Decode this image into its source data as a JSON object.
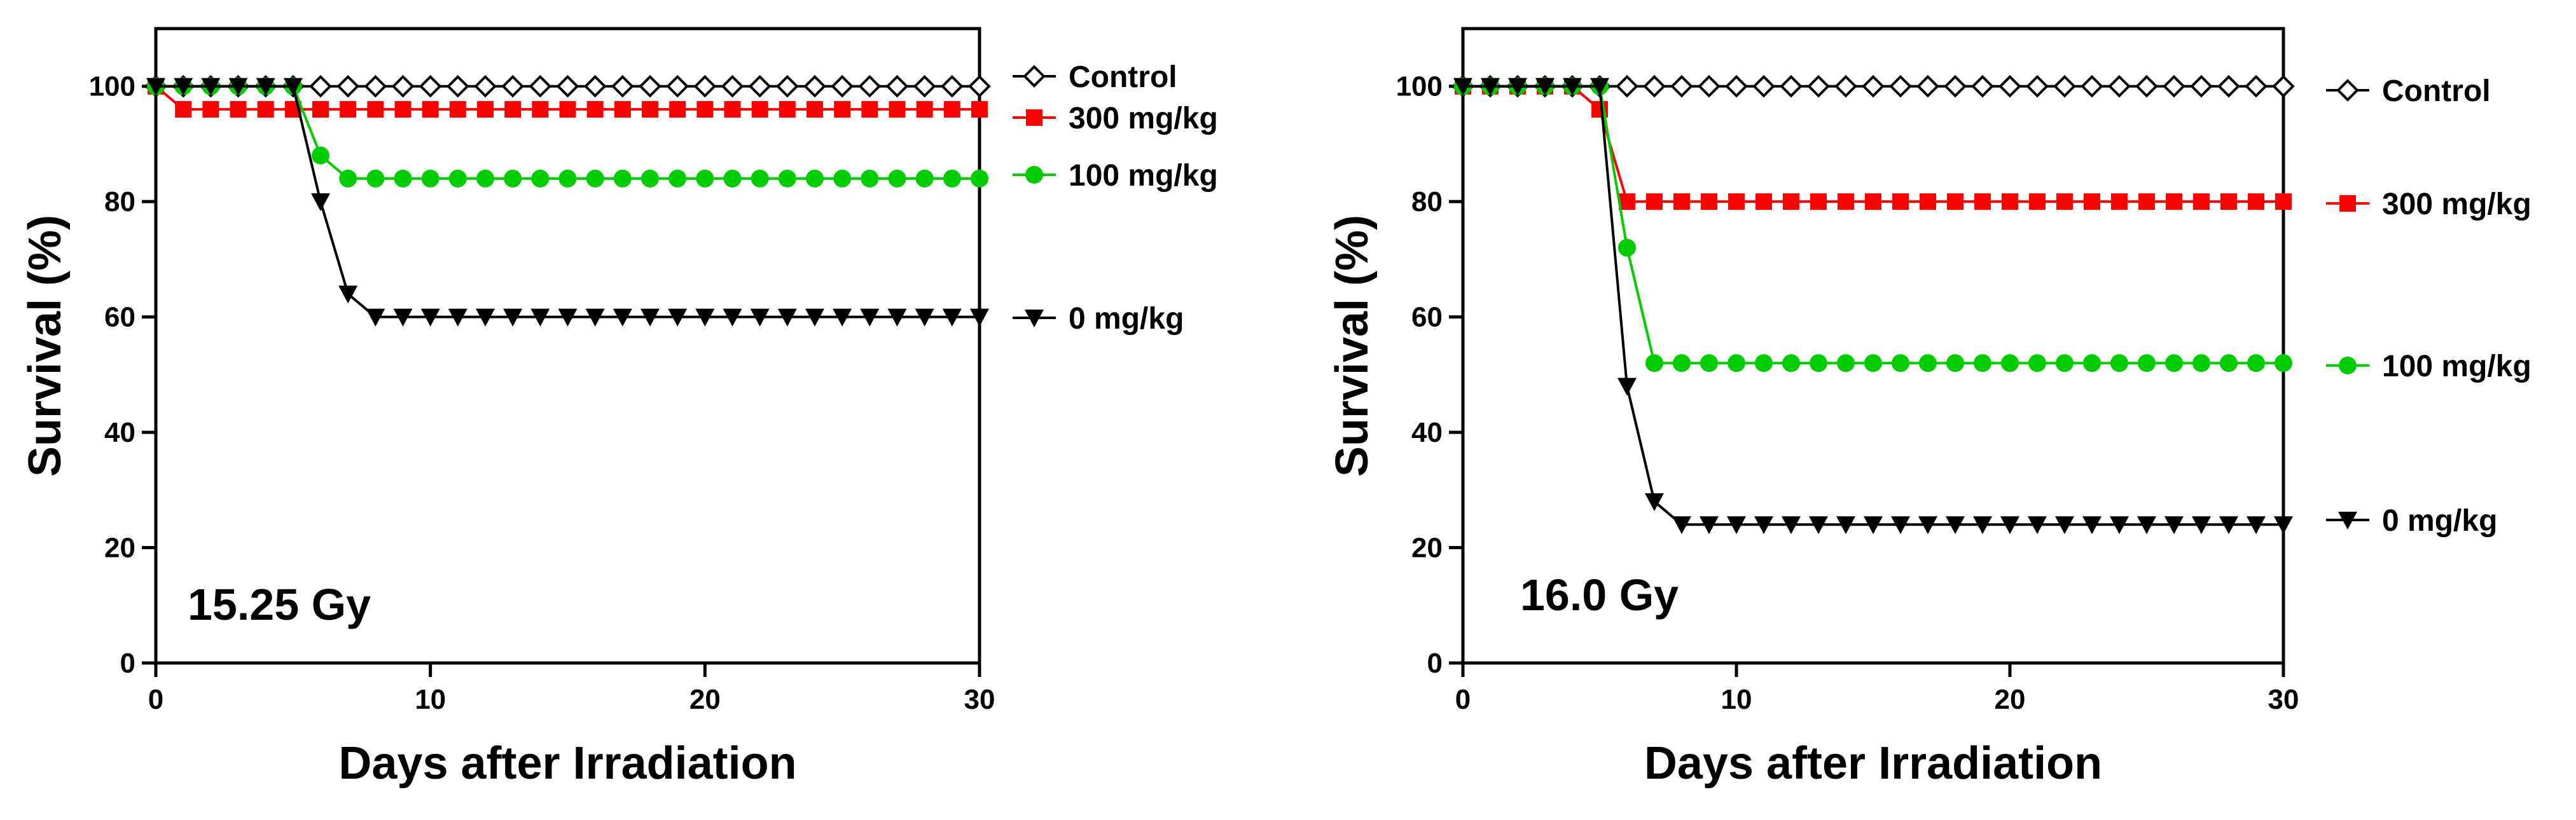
{
  "chart_data": [
    {
      "type": "line",
      "annotation": "15.25 Gy",
      "title": "",
      "xlabel": "Days after Irradiation",
      "ylabel": "Survival (%)",
      "xlim": [
        0,
        30
      ],
      "ylim": [
        0,
        110
      ],
      "xticks": [
        0,
        10,
        20,
        30
      ],
      "yticks": [
        0,
        20,
        40,
        60,
        80,
        100
      ],
      "grid": false,
      "legend": "right",
      "x": [
        0,
        1,
        2,
        3,
        4,
        5,
        6,
        7,
        8,
        9,
        10,
        11,
        12,
        13,
        14,
        15,
        16,
        17,
        18,
        19,
        20,
        21,
        22,
        23,
        24,
        25,
        26,
        27,
        28,
        29,
        30
      ],
      "series": [
        {
          "name": "Control",
          "color": "#000000",
          "marker": "open-diamond",
          "values": [
            100,
            100,
            100,
            100,
            100,
            100,
            100,
            100,
            100,
            100,
            100,
            100,
            100,
            100,
            100,
            100,
            100,
            100,
            100,
            100,
            100,
            100,
            100,
            100,
            100,
            100,
            100,
            100,
            100,
            100,
            100
          ]
        },
        {
          "name": "300 mg/kg",
          "color": "#ff0000",
          "marker": "square",
          "values": [
            100,
            96,
            96,
            96,
            96,
            96,
            96,
            96,
            96,
            96,
            96,
            96,
            96,
            96,
            96,
            96,
            96,
            96,
            96,
            96,
            96,
            96,
            96,
            96,
            96,
            96,
            96,
            96,
            96,
            96,
            96
          ]
        },
        {
          "name": "100 mg/kg",
          "color": "#00cc00",
          "marker": "circle",
          "values": [
            100,
            100,
            100,
            100,
            100,
            100,
            88,
            84,
            84,
            84,
            84,
            84,
            84,
            84,
            84,
            84,
            84,
            84,
            84,
            84,
            84,
            84,
            84,
            84,
            84,
            84,
            84,
            84,
            84,
            84,
            84
          ]
        },
        {
          "name": "0 mg/kg",
          "color": "#000000",
          "marker": "down-triangle",
          "values": [
            100,
            100,
            100,
            100,
            100,
            100,
            80,
            64,
            60,
            60,
            60,
            60,
            60,
            60,
            60,
            60,
            60,
            60,
            60,
            60,
            60,
            60,
            60,
            60,
            60,
            60,
            60,
            60,
            60,
            60,
            60
          ]
        }
      ]
    },
    {
      "type": "line",
      "annotation": "16.0 Gy",
      "title": "",
      "xlabel": "Days after Irradiation",
      "ylabel": "Survival (%)",
      "xlim": [
        0,
        30
      ],
      "ylim": [
        0,
        110
      ],
      "xticks": [
        0,
        10,
        20,
        30
      ],
      "yticks": [
        0,
        20,
        40,
        60,
        80,
        100
      ],
      "grid": false,
      "legend": "right",
      "x": [
        0,
        1,
        2,
        3,
        4,
        5,
        6,
        7,
        8,
        9,
        10,
        11,
        12,
        13,
        14,
        15,
        16,
        17,
        18,
        19,
        20,
        21,
        22,
        23,
        24,
        25,
        26,
        27,
        28,
        29,
        30
      ],
      "series": [
        {
          "name": "Control",
          "color": "#000000",
          "marker": "open-diamond",
          "values": [
            100,
            100,
            100,
            100,
            100,
            100,
            100,
            100,
            100,
            100,
            100,
            100,
            100,
            100,
            100,
            100,
            100,
            100,
            100,
            100,
            100,
            100,
            100,
            100,
            100,
            100,
            100,
            100,
            100,
            100,
            100
          ]
        },
        {
          "name": "300 mg/kg",
          "color": "#ff0000",
          "marker": "square",
          "values": [
            100,
            100,
            100,
            100,
            100,
            96,
            80,
            80,
            80,
            80,
            80,
            80,
            80,
            80,
            80,
            80,
            80,
            80,
            80,
            80,
            80,
            80,
            80,
            80,
            80,
            80,
            80,
            80,
            80,
            80,
            80
          ]
        },
        {
          "name": "100 mg/kg",
          "color": "#00cc00",
          "marker": "circle",
          "values": [
            100,
            100,
            100,
            100,
            100,
            100,
            72,
            52,
            52,
            52,
            52,
            52,
            52,
            52,
            52,
            52,
            52,
            52,
            52,
            52,
            52,
            52,
            52,
            52,
            52,
            52,
            52,
            52,
            52,
            52,
            52
          ]
        },
        {
          "name": "0 mg/kg",
          "color": "#000000",
          "marker": "down-triangle",
          "values": [
            100,
            100,
            100,
            100,
            100,
            100,
            48,
            28,
            24,
            24,
            24,
            24,
            24,
            24,
            24,
            24,
            24,
            24,
            24,
            24,
            24,
            24,
            24,
            24,
            24,
            24,
            24,
            24,
            24,
            24,
            24
          ]
        }
      ]
    }
  ]
}
